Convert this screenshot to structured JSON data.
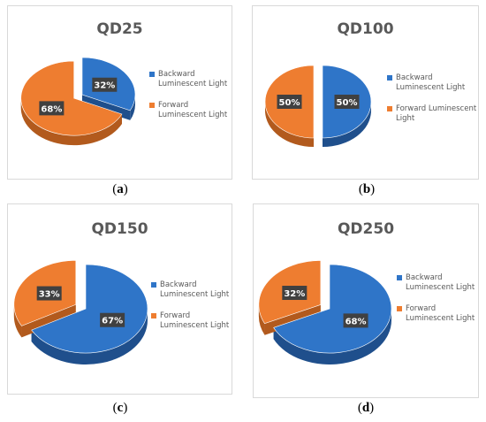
{
  "colors": {
    "backward": "#2f75c8",
    "forward": "#ee7d30",
    "label_bg": "#404040"
  },
  "chart_data": [
    {
      "type": "pie",
      "title": "QD25",
      "caption": "a",
      "categories": [
        "Backward Luminescent Light",
        "Forward Luminescent Light"
      ],
      "values": [
        32,
        68
      ],
      "labels": [
        "32%",
        "68%"
      ],
      "legend": "right"
    },
    {
      "type": "pie",
      "title": "QD100",
      "caption": "b",
      "categories": [
        "Backward Luminescent Light",
        "Forward Luminescent Light"
      ],
      "values": [
        50,
        50
      ],
      "labels": [
        "50%",
        "50%"
      ],
      "legend": "right"
    },
    {
      "type": "pie",
      "title": "QD150",
      "caption": "c",
      "categories": [
        "Backward Luminescent Light",
        "Forward Luminescent Light"
      ],
      "values": [
        67,
        33
      ],
      "labels": [
        "67%",
        "33%"
      ],
      "legend": "right"
    },
    {
      "type": "pie",
      "title": "QD250",
      "caption": "d",
      "categories": [
        "Backward Luminescent Light",
        "Forward Luminescent Light"
      ],
      "values": [
        68,
        32
      ],
      "labels": [
        "68%",
        "32%"
      ],
      "legend": "right"
    }
  ],
  "legend_lines": [
    [
      "Backward",
      "Luminescent Light"
    ],
    [
      "Forward",
      "Luminescent Light"
    ]
  ]
}
